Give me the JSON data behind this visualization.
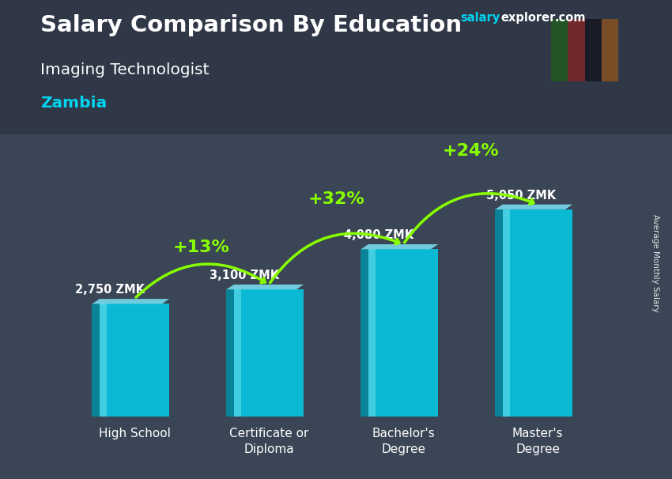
{
  "title": "Salary Comparison By Education",
  "subtitle": "Imaging Technologist",
  "country": "Zambia",
  "ylabel": "Average Monthly Salary",
  "categories": [
    "High School",
    "Certificate or\nDiploma",
    "Bachelor's\nDegree",
    "Master's\nDegree"
  ],
  "values": [
    2750,
    3100,
    4080,
    5050
  ],
  "labels": [
    "2,750 ZMK",
    "3,100 ZMK",
    "4,080 ZMK",
    "5,050 ZMK"
  ],
  "pct_changes": [
    "+13%",
    "+32%",
    "+24%"
  ],
  "bar_face_color": "#00d4f0",
  "bar_side_color": "#0090a8",
  "bar_top_color": "#80eeff",
  "bar_alpha": 0.82,
  "bg_color": "#3a4555",
  "title_color": "#ffffff",
  "subtitle_color": "#ffffff",
  "country_color": "#00d4f0",
  "label_color": "#ffffff",
  "pct_color": "#88ff00",
  "arrow_color": "#88ff00",
  "watermark_salary_color": "#00d4f0",
  "watermark_explorer_color": "#ffffff",
  "watermark_com_color": "#ffffff",
  "xlim": [
    -0.7,
    3.7
  ],
  "ylim": [
    0,
    7000
  ],
  "bar_width": 0.52,
  "bar_positions": [
    0,
    1,
    2,
    3
  ]
}
